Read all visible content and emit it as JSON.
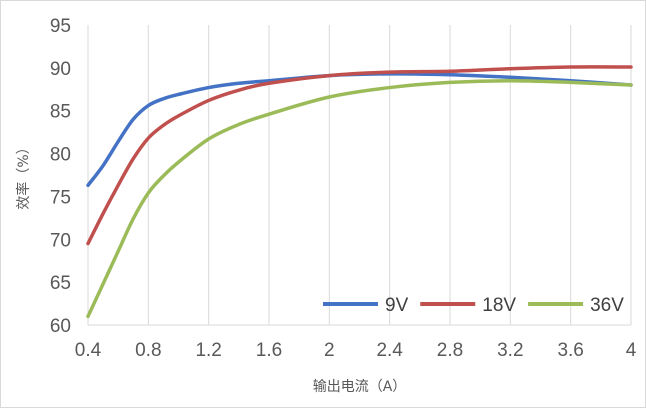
{
  "chart_data": {
    "type": "line",
    "title": "",
    "xlabel": "输出电流（A）",
    "ylabel": "效率（%）",
    "xlim": [
      0.4,
      4.0
    ],
    "ylim": [
      60,
      95
    ],
    "x_ticks": [
      "0.4",
      "0.8",
      "1.2",
      "1.6",
      "2",
      "2.4",
      "2.8",
      "3.2",
      "3.6",
      "4"
    ],
    "y_ticks": [
      "60",
      "65",
      "70",
      "75",
      "80",
      "85",
      "90",
      "95"
    ],
    "grid": "vertical",
    "legend_position": "bottom-right",
    "series": [
      {
        "name": "9V",
        "color": "#4472C4",
        "x": [
          0.4,
          0.5,
          0.6,
          0.7,
          0.8,
          0.9,
          1.0,
          1.2,
          1.4,
          1.6,
          2.0,
          2.4,
          2.8,
          3.2,
          3.6,
          4.0
        ],
        "y": [
          76.3,
          78.6,
          81.4,
          84.0,
          85.6,
          86.4,
          86.9,
          87.7,
          88.2,
          88.5,
          89.1,
          89.3,
          89.2,
          88.9,
          88.5,
          88.0
        ]
      },
      {
        "name": "18V",
        "color": "#C0504D",
        "x": [
          0.4,
          0.5,
          0.6,
          0.7,
          0.8,
          0.9,
          1.0,
          1.2,
          1.4,
          1.6,
          2.0,
          2.4,
          2.8,
          3.2,
          3.6,
          4.0
        ],
        "y": [
          69.5,
          73.0,
          76.3,
          79.4,
          81.8,
          83.3,
          84.4,
          86.2,
          87.4,
          88.2,
          89.1,
          89.5,
          89.6,
          89.9,
          90.1,
          90.1
        ]
      },
      {
        "name": "36V",
        "color": "#9BBB59",
        "x": [
          0.4,
          0.5,
          0.6,
          0.7,
          0.8,
          0.9,
          1.0,
          1.2,
          1.4,
          1.6,
          2.0,
          2.4,
          2.8,
          3.2,
          3.6,
          4.0
        ],
        "y": [
          61.0,
          64.8,
          68.6,
          72.4,
          75.4,
          77.4,
          79.0,
          81.7,
          83.4,
          84.6,
          86.6,
          87.7,
          88.3,
          88.5,
          88.3,
          88.0
        ]
      }
    ]
  }
}
